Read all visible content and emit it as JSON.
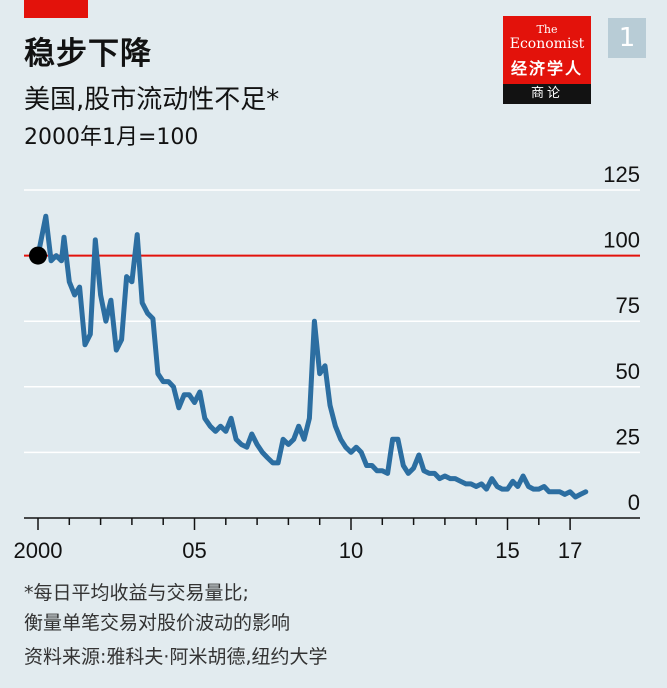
{
  "header": {
    "title": "稳步下降",
    "subtitle": "美国,股市流动性不足*",
    "unit": "2000年1月=100",
    "chart_number": "1"
  },
  "logo": {
    "the": "The",
    "name": "Economist",
    "cn": "经济学人",
    "strip": "商论"
  },
  "footnote": {
    "line1": "*每日平均收益与交易量比;",
    "line2": "衡量单笔交易对股价波动的影响",
    "source": "资料来源:雅科夫·阿米胡德,纽约大学"
  },
  "colors": {
    "line": "#2c6ea1",
    "reference": "#e3120b",
    "background": "#e2ebef",
    "marker": "#000000"
  },
  "chart_data": {
    "type": "line",
    "title": "稳步下降",
    "subtitle": "美国,股市流动性不足*",
    "ylabel": "2000年1月=100",
    "ylim": [
      0,
      125
    ],
    "xlim": [
      2000,
      2018
    ],
    "yticks": [
      "0",
      "25",
      "50",
      "75",
      "100",
      "125"
    ],
    "xticks": [
      {
        "value": 2000,
        "label": "2000"
      },
      {
        "value": 2005,
        "label": "05"
      },
      {
        "value": 2010,
        "label": "10"
      },
      {
        "value": 2015,
        "label": "15"
      },
      {
        "value": 2017,
        "label": "17"
      }
    ],
    "reference_line": 100,
    "start_marker": {
      "x": 2000.0,
      "y": 100
    },
    "grid": "horizontal",
    "series": [
      {
        "values": [
          [
            2000.0,
            100
          ],
          [
            2000.25,
            115
          ],
          [
            2000.42,
            98
          ],
          [
            2000.58,
            100
          ],
          [
            2000.75,
            98
          ],
          [
            2000.83,
            107
          ],
          [
            2001.0,
            90
          ],
          [
            2001.17,
            85
          ],
          [
            2001.33,
            88
          ],
          [
            2001.5,
            66
          ],
          [
            2001.67,
            70
          ],
          [
            2001.83,
            106
          ],
          [
            2002.0,
            85
          ],
          [
            2002.17,
            75
          ],
          [
            2002.33,
            83
          ],
          [
            2002.5,
            64
          ],
          [
            2002.67,
            68
          ],
          [
            2002.83,
            92
          ],
          [
            2003.0,
            90
          ],
          [
            2003.17,
            108
          ],
          [
            2003.33,
            82
          ],
          [
            2003.5,
            78
          ],
          [
            2003.67,
            76
          ],
          [
            2003.83,
            55
          ],
          [
            2004.0,
            52
          ],
          [
            2004.17,
            52
          ],
          [
            2004.33,
            50
          ],
          [
            2004.5,
            42
          ],
          [
            2004.67,
            47
          ],
          [
            2004.83,
            47
          ],
          [
            2005.0,
            44
          ],
          [
            2005.17,
            48
          ],
          [
            2005.33,
            38
          ],
          [
            2005.5,
            35
          ],
          [
            2005.67,
            33
          ],
          [
            2005.83,
            35
          ],
          [
            2006.0,
            33
          ],
          [
            2006.17,
            38
          ],
          [
            2006.33,
            30
          ],
          [
            2006.5,
            28
          ],
          [
            2006.67,
            27
          ],
          [
            2006.83,
            32
          ],
          [
            2007.0,
            28
          ],
          [
            2007.17,
            25
          ],
          [
            2007.33,
            23
          ],
          [
            2007.5,
            21
          ],
          [
            2007.67,
            21
          ],
          [
            2007.83,
            30
          ],
          [
            2008.0,
            28
          ],
          [
            2008.17,
            30
          ],
          [
            2008.33,
            35
          ],
          [
            2008.5,
            30
          ],
          [
            2008.67,
            38
          ],
          [
            2008.83,
            75
          ],
          [
            2009.0,
            55
          ],
          [
            2009.17,
            58
          ],
          [
            2009.33,
            43
          ],
          [
            2009.5,
            35
          ],
          [
            2009.67,
            30
          ],
          [
            2009.83,
            27
          ],
          [
            2010.0,
            25
          ],
          [
            2010.17,
            27
          ],
          [
            2010.33,
            25
          ],
          [
            2010.5,
            20
          ],
          [
            2010.67,
            20
          ],
          [
            2010.83,
            18
          ],
          [
            2011.0,
            18
          ],
          [
            2011.17,
            17
          ],
          [
            2011.33,
            30
          ],
          [
            2011.5,
            30
          ],
          [
            2011.67,
            20
          ],
          [
            2011.83,
            17
          ],
          [
            2012.0,
            19
          ],
          [
            2012.17,
            24
          ],
          [
            2012.33,
            18
          ],
          [
            2012.5,
            17
          ],
          [
            2012.67,
            17
          ],
          [
            2012.83,
            15
          ],
          [
            2013.0,
            16
          ],
          [
            2013.17,
            15
          ],
          [
            2013.33,
            15
          ],
          [
            2013.5,
            14
          ],
          [
            2013.67,
            13
          ],
          [
            2013.83,
            13
          ],
          [
            2014.0,
            12
          ],
          [
            2014.17,
            13
          ],
          [
            2014.33,
            11
          ],
          [
            2014.5,
            15
          ],
          [
            2014.67,
            12
          ],
          [
            2014.83,
            11
          ],
          [
            2015.0,
            11
          ],
          [
            2015.17,
            14
          ],
          [
            2015.33,
            12
          ],
          [
            2015.5,
            16
          ],
          [
            2015.67,
            12
          ],
          [
            2015.83,
            11
          ],
          [
            2016.0,
            11
          ],
          [
            2016.17,
            12
          ],
          [
            2016.33,
            10
          ],
          [
            2016.5,
            10
          ],
          [
            2016.67,
            10
          ],
          [
            2016.83,
            9
          ],
          [
            2017.0,
            10
          ],
          [
            2017.17,
            8
          ],
          [
            2017.33,
            9
          ],
          [
            2017.5,
            10
          ]
        ]
      }
    ]
  }
}
